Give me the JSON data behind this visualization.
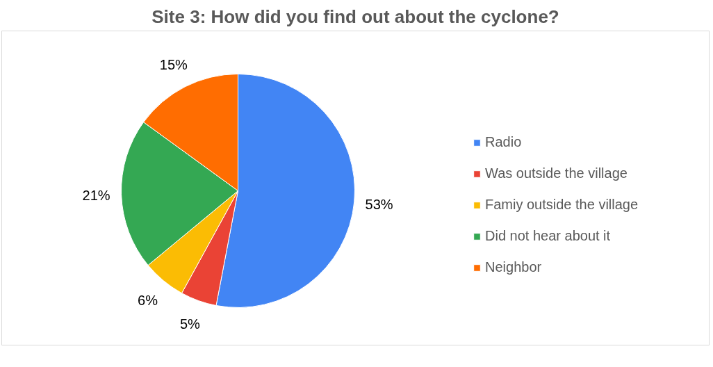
{
  "chart_data": {
    "type": "pie",
    "title": "Site 3: How did you find out about the cyclone?",
    "categories": [
      "Radio",
      "Was outside the village",
      "Famiy outside the village",
      "Did not hear about it",
      "Neighbor"
    ],
    "values": [
      53,
      5,
      6,
      21,
      15
    ],
    "colors": [
      "#4285f4",
      "#ea4335",
      "#fbbc04",
      "#34a853",
      "#ff6d01"
    ],
    "value_labels": [
      "53%",
      "5%",
      "6%",
      "21%",
      "15%"
    ],
    "legend": "right"
  }
}
